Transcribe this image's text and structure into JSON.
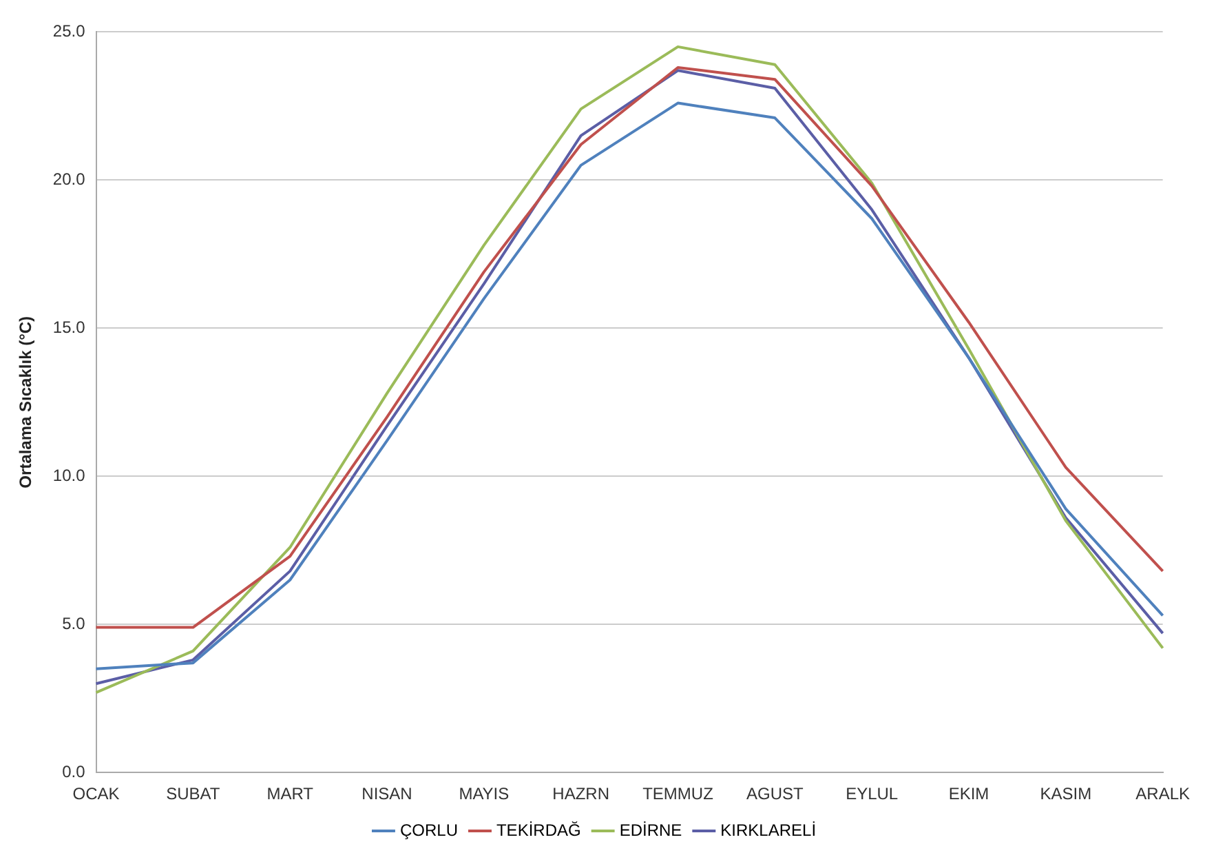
{
  "chart_data": {
    "type": "line",
    "ylabel": "Ortalama Sıcaklık (°C)",
    "categories": [
      "OCAK",
      "SUBAT",
      "MART",
      "NISAN",
      "MAYIS",
      "HAZRN",
      "TEMMUZ",
      "AGUST",
      "EYLUL",
      "EKIM",
      "KASIM",
      "ARALK"
    ],
    "series": [
      {
        "name": "ÇORLU",
        "color": "#4f81bd",
        "values": [
          3.5,
          3.7,
          6.5,
          11.2,
          16.0,
          20.5,
          22.6,
          22.1,
          18.7,
          14.0,
          8.9,
          5.3
        ]
      },
      {
        "name": "TEKİRDAĞ",
        "color": "#c0504d",
        "values": [
          4.9,
          4.9,
          7.3,
          12.0,
          16.9,
          21.2,
          23.8,
          23.4,
          19.8,
          15.2,
          10.3,
          6.8
        ]
      },
      {
        "name": "EDİRNE",
        "color": "#9bbb59",
        "values": [
          2.7,
          4.1,
          7.6,
          12.8,
          17.8,
          22.4,
          24.5,
          23.9,
          19.9,
          14.3,
          8.5,
          4.2
        ]
      },
      {
        "name": "KIRKLARELİ",
        "color": "#5b5ea6",
        "values": [
          3.0,
          3.8,
          6.8,
          11.7,
          16.5,
          21.5,
          23.7,
          23.1,
          19.0,
          14.0,
          8.6,
          4.7
        ]
      }
    ],
    "ylim": [
      0,
      25
    ],
    "yticks": [
      {
        "value": 0,
        "label": "0.0"
      },
      {
        "value": 5,
        "label": "5.0"
      },
      {
        "value": 10,
        "label": "10.0"
      },
      {
        "value": 15,
        "label": "15.0"
      },
      {
        "value": 20,
        "label": "20.0"
      },
      {
        "value": 25,
        "label": "25.0"
      }
    ],
    "grid": "y",
    "legend": "bottom",
    "marker": "none",
    "line_style": "solid"
  }
}
